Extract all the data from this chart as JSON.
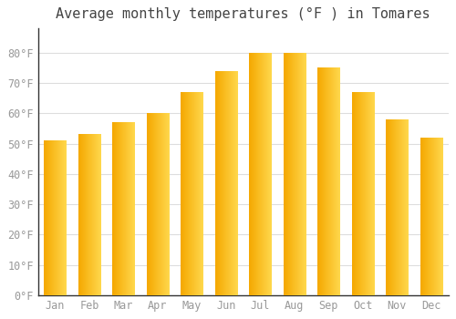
{
  "title": "Average monthly temperatures (°F ) in Tomares",
  "months": [
    "Jan",
    "Feb",
    "Mar",
    "Apr",
    "May",
    "Jun",
    "Jul",
    "Aug",
    "Sep",
    "Oct",
    "Nov",
    "Dec"
  ],
  "values": [
    51,
    53,
    57,
    60,
    67,
    74,
    80,
    80,
    75,
    67,
    58,
    52
  ],
  "bar_color_left": "#F5A800",
  "bar_color_right": "#FFD84D",
  "background_color": "#FFFFFF",
  "grid_color": "#DDDDDD",
  "ylim": [
    0,
    88
  ],
  "yticks": [
    0,
    10,
    20,
    30,
    40,
    50,
    60,
    70,
    80
  ],
  "title_fontsize": 11,
  "tick_fontsize": 8.5,
  "tick_color": "#999999",
  "spine_color": "#333333"
}
